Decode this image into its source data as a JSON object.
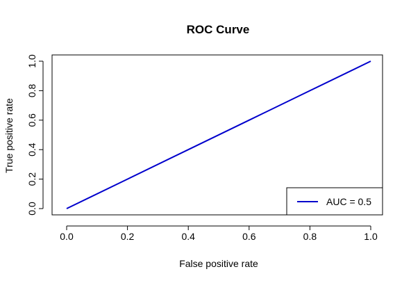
{
  "chart_data": {
    "type": "line",
    "title": "ROC Curve",
    "xlabel": "False positive rate",
    "ylabel": "True positive rate",
    "xlim": [
      0,
      1
    ],
    "ylim": [
      0,
      1
    ],
    "x_ticks": [
      "0.0",
      "0.2",
      "0.4",
      "0.6",
      "0.8",
      "1.0"
    ],
    "y_ticks": [
      "0.0",
      "0.2",
      "0.4",
      "0.6",
      "0.8",
      "1.0"
    ],
    "grid": false,
    "legend_position": "bottom-right",
    "series": [
      {
        "name": "AUC = 0.5",
        "color": "#0000cc",
        "x": [
          0.0,
          0.2,
          0.4,
          0.6,
          0.8,
          1.0
        ],
        "y": [
          0.0,
          0.2,
          0.4,
          0.6,
          0.8,
          1.0
        ]
      }
    ]
  }
}
